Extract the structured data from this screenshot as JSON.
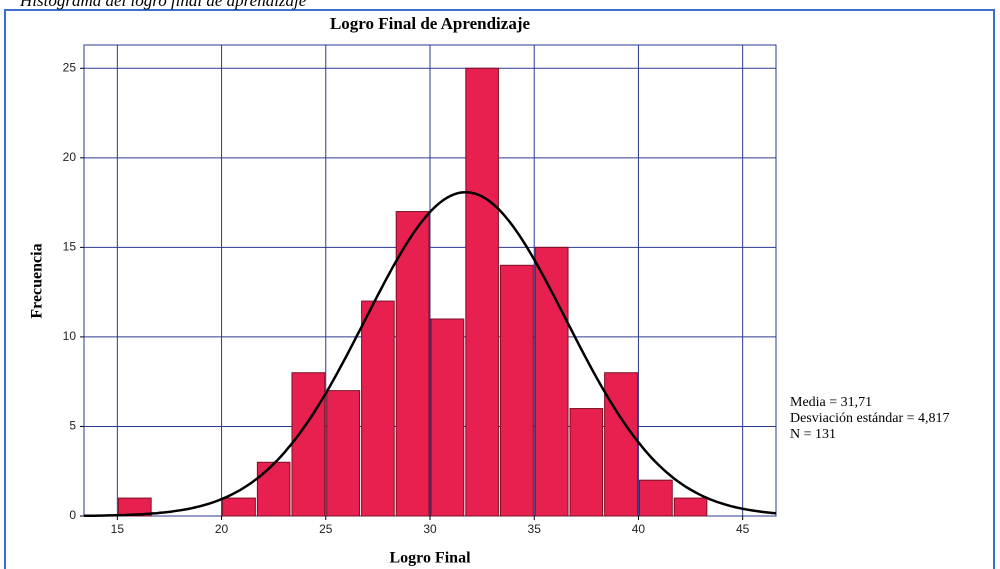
{
  "chart_data": {
    "type": "histogram",
    "caption": "Histograma del logro final de aprendizaje",
    "title": "Logro Final de Aprendizaje",
    "x_label": "Logro Final",
    "y_label": "Frecuencia",
    "bins": [
      15,
      16.67,
      18.33,
      20,
      21.67,
      23.33,
      25,
      26.67,
      28.33,
      30,
      31.67,
      33.33,
      35,
      36.67,
      38.33,
      40,
      41.67,
      43.33
    ],
    "counts": [
      1,
      0,
      0,
      1,
      3,
      8,
      7,
      12,
      17,
      11,
      25,
      14,
      15,
      6,
      8,
      2,
      1
    ],
    "color": "#e8204f",
    "curve_color": "#000000",
    "xlim": [
      13.4,
      46.6
    ],
    "xticks": [
      15,
      20,
      25,
      30,
      35,
      40,
      45
    ],
    "ylim": [
      0,
      26.3
    ],
    "yticks": [
      0,
      5,
      10,
      15,
      20,
      25
    ],
    "grid": true,
    "stats": [
      {
        "label": "Media = 31,71",
        "value": 31.71
      },
      {
        "label": "Desviación estándar = 4,817",
        "value": 4.817
      },
      {
        "label": "N = 131",
        "value": 131
      }
    ]
  }
}
